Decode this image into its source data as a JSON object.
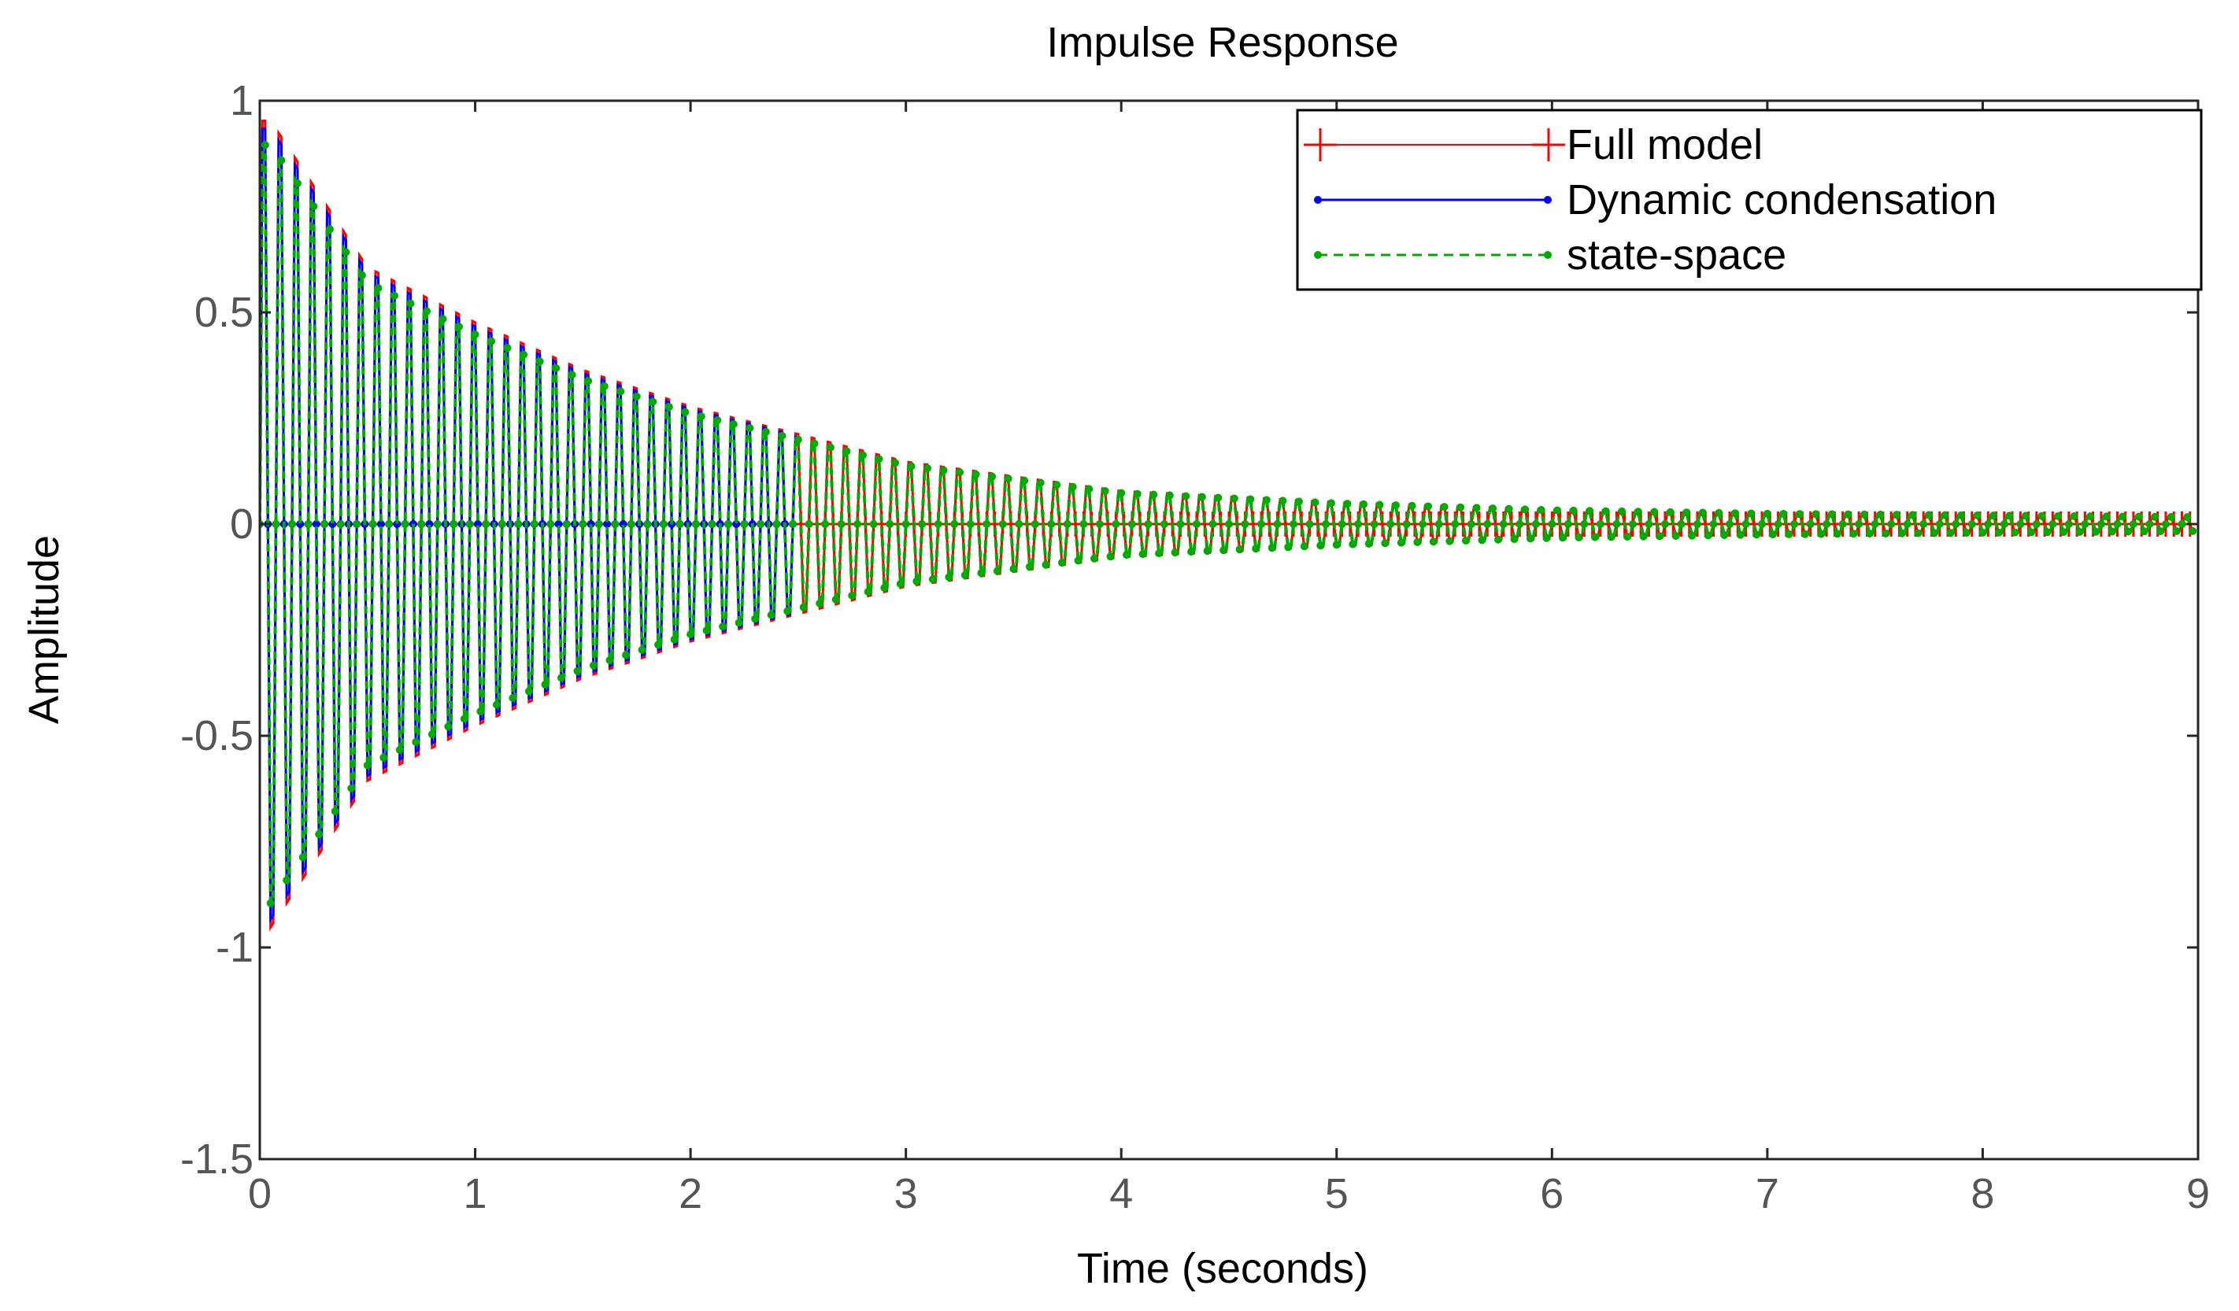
{
  "chart_data": {
    "type": "line",
    "title": "Impulse Response",
    "xlabel": "Time (seconds)",
    "ylabel": "Amplitude",
    "xlim": [
      0,
      9
    ],
    "ylim": [
      -1.5,
      1
    ],
    "xticks": [
      0,
      1,
      2,
      3,
      4,
      5,
      6,
      7,
      8,
      9
    ],
    "xtick_labels": [
      "0",
      "1",
      "2",
      "3",
      "4",
      "5",
      "6",
      "7",
      "8",
      "9"
    ],
    "yticks": [
      -1.5,
      -1,
      -0.5,
      0,
      0.5,
      1
    ],
    "ytick_labels": [
      "-1.5",
      "-1",
      "-0.5",
      "0",
      "0.5",
      "1"
    ],
    "grid": false,
    "legend_position": "top-right",
    "envelope": {
      "t": [
        0.05,
        0.5,
        1,
        1.5,
        2,
        3,
        4,
        5,
        6,
        7,
        8,
        9
      ],
      "amplitude": [
        1.1,
        0.7,
        0.55,
        0.42,
        0.32,
        0.17,
        0.09,
        0.06,
        0.04,
        0.03,
        0.025,
        0.02
      ]
    },
    "oscillation_period_s": 0.075,
    "series": [
      {
        "name": "Full model",
        "color": "#ff0000",
        "style": "solid",
        "marker": "plus",
        "peak_positive": 0.93,
        "peak_negative": -1.12,
        "ends_at_t": 9
      },
      {
        "name": "Dynamic condensation",
        "color": "#0000ff",
        "style": "solid",
        "marker": "dot",
        "peak_positive": 0.92,
        "peak_negative": -1.1,
        "ends_at_t": 2.5
      },
      {
        "name": "state-space",
        "color": "#00aa00",
        "style": "dashed",
        "marker": "dot",
        "peak_positive": 0.9,
        "peak_negative": -1.05,
        "ends_at_t": 9
      }
    ]
  }
}
